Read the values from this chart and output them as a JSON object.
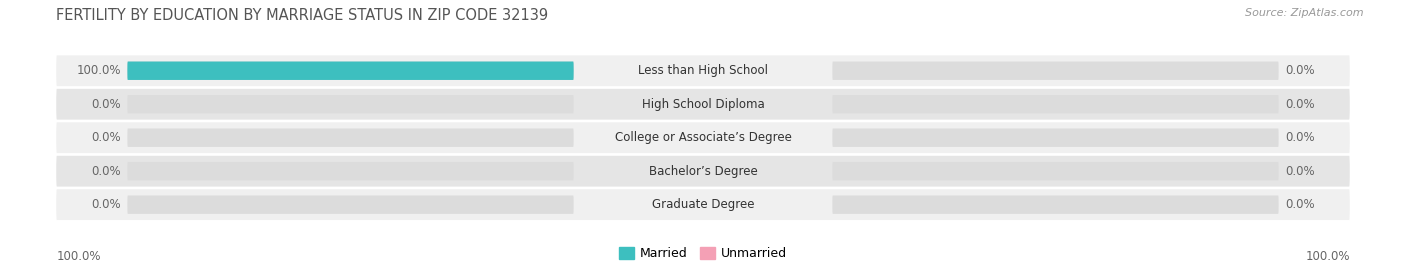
{
  "title": "FERTILITY BY EDUCATION BY MARRIAGE STATUS IN ZIP CODE 32139",
  "source": "Source: ZipAtlas.com",
  "categories": [
    "Less than High School",
    "High School Diploma",
    "College or Associate’s Degree",
    "Bachelor’s Degree",
    "Graduate Degree"
  ],
  "married_values": [
    100.0,
    0.0,
    0.0,
    0.0,
    0.0
  ],
  "unmarried_values": [
    0.0,
    0.0,
    0.0,
    0.0,
    0.0
  ],
  "married_color": "#3DBFBF",
  "unmarried_color": "#F4A0B5",
  "row_bg_light": "#F0F0F0",
  "row_bg_dark": "#E5E5E5",
  "bar_bg_color": "#DCDCDC",
  "title_color": "#555555",
  "label_color": "#666666",
  "max_value": 100.0,
  "bottom_left_label": "100.0%",
  "bottom_right_label": "100.0%",
  "title_fontsize": 10.5,
  "label_fontsize": 8.5,
  "category_fontsize": 8.5,
  "legend_fontsize": 9,
  "source_fontsize": 8
}
